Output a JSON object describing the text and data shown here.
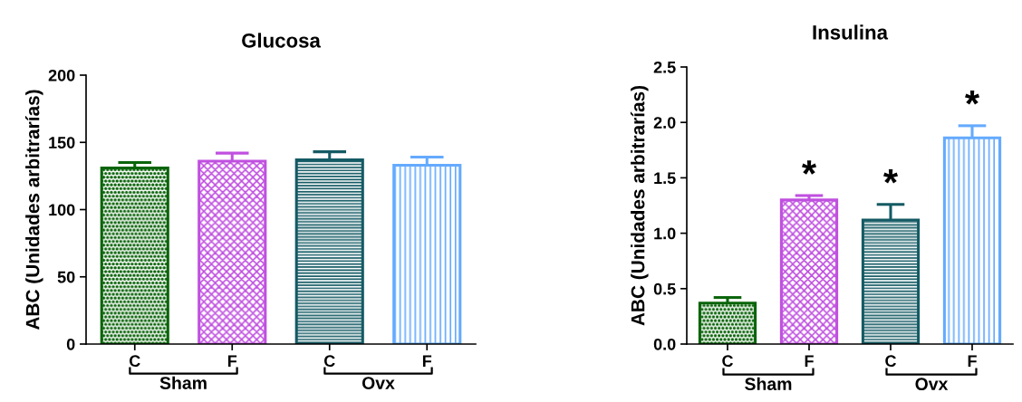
{
  "chart_data": [
    {
      "type": "bar",
      "title": "Glucosa",
      "ylabel": "ABC (Unidades arbitrarías)",
      "categories": [
        "C",
        "F",
        "C",
        "F"
      ],
      "values": [
        131,
        136,
        137,
        133
      ],
      "errors": [
        [
          131,
          135
        ],
        [
          136,
          142
        ],
        [
          137,
          143
        ],
        [
          133,
          139
        ]
      ],
      "colors": [
        "#0a640a",
        "#c050e0",
        "#145a64",
        "#64aaff"
      ],
      "ylim": [
        0,
        200
      ],
      "yticks": [
        0,
        50,
        100,
        150,
        200
      ],
      "grid": false,
      "legend": false,
      "annotations": [
        "Sham",
        "Ovx"
      ]
    },
    {
      "type": "bar",
      "title": "Insulina",
      "ylabel": "ABC (Unidades arbitrarías)",
      "categories": [
        "C",
        "F",
        "C",
        "F"
      ],
      "values": [
        0.37,
        1.3,
        1.12,
        1.86
      ],
      "errors": [
        [
          0.37,
          0.42
        ],
        [
          1.3,
          1.34
        ],
        [
          1.12,
          1.26
        ],
        [
          1.86,
          1.97
        ]
      ],
      "colors": [
        "#0a640a",
        "#c050e0",
        "#145a64",
        "#64aaff"
      ],
      "value_labels": [
        null,
        "*",
        "*",
        "*"
      ],
      "ylim": [
        0,
        2.5
      ],
      "yticks": [
        {
          "value": 0,
          "label": "0.0"
        },
        {
          "value": 0.5,
          "label": "0.5"
        },
        {
          "value": 1,
          "label": "1.0"
        },
        {
          "value": 1.5,
          "label": "1.5"
        },
        {
          "value": 2,
          "label": "2.0"
        },
        {
          "value": 2.5,
          "label": "2.5"
        }
      ],
      "grid": false,
      "legend": false,
      "annotations": [
        "Sham",
        "Ovx"
      ]
    }
  ]
}
